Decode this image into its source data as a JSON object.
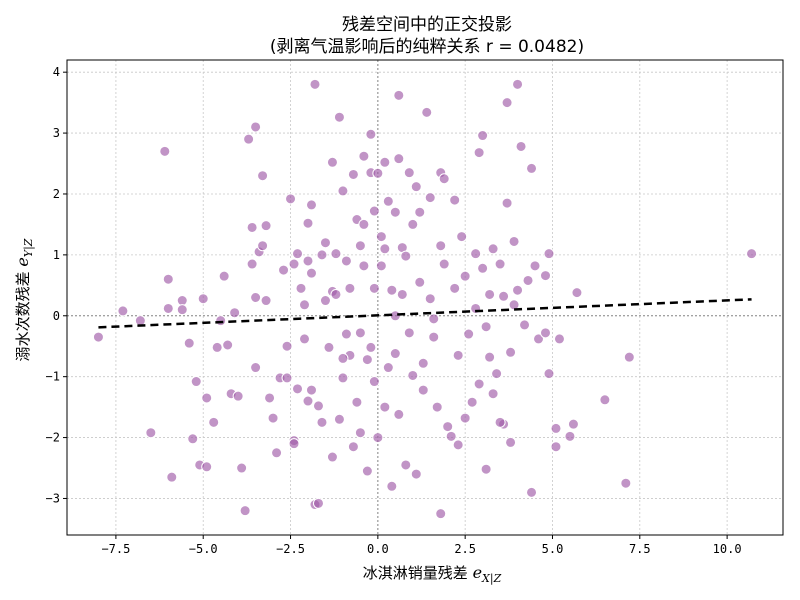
{
  "chart_data": {
    "type": "scatter",
    "title": "残差空间中的正交投影",
    "subtitle": "(剥离气温影响后的纯粹关系 r = 0.0482)",
    "xlabel_main": "冰淇淋销量残差 ",
    "xlabel_symbol": "e",
    "xlabel_sub": "X|Z",
    "ylabel_main": "溺水次数残差 ",
    "ylabel_symbol": "e",
    "ylabel_sub": "Y|Z",
    "xlim": [
      -8.9,
      11.6
    ],
    "ylim": [
      -3.6,
      4.2
    ],
    "xticks": [
      -7.5,
      -5.0,
      -2.5,
      0.0,
      2.5,
      5.0,
      7.5,
      10.0
    ],
    "yticks": [
      -3,
      -2,
      -1,
      0,
      1,
      2,
      3,
      4
    ],
    "xtick_labels": [
      "−7.5",
      "−5.0",
      "−2.5",
      "0.0",
      "2.5",
      "5.0",
      "7.5",
      "10.0"
    ],
    "ytick_labels": [
      "−3",
      "−2",
      "−1",
      "0",
      "1",
      "2",
      "3",
      "4"
    ],
    "grid": true,
    "zero_lines": true,
    "point_color": "#a05aa8",
    "line_color": "#000000",
    "fit_line": {
      "x": [
        -8.0,
        10.7
      ],
      "y": [
        -0.19,
        0.27
      ]
    },
    "points": [
      [
        -8.0,
        -0.35
      ],
      [
        -7.3,
        0.08
      ],
      [
        -6.8,
        -0.08
      ],
      [
        -6.5,
        -1.92
      ],
      [
        -6.1,
        2.7
      ],
      [
        -6.0,
        0.6
      ],
      [
        -6.0,
        0.12
      ],
      [
        -5.9,
        -2.65
      ],
      [
        -5.6,
        0.25
      ],
      [
        -5.6,
        0.1
      ],
      [
        -5.4,
        -0.45
      ],
      [
        -5.3,
        -2.02
      ],
      [
        -5.2,
        -1.08
      ],
      [
        -5.1,
        -2.45
      ],
      [
        -5.0,
        0.28
      ],
      [
        -4.9,
        -2.48
      ],
      [
        -4.9,
        -1.35
      ],
      [
        -4.7,
        -1.75
      ],
      [
        -4.6,
        -0.52
      ],
      [
        -4.5,
        -0.08
      ],
      [
        -4.4,
        0.65
      ],
      [
        -4.3,
        -0.48
      ],
      [
        -4.2,
        -1.28
      ],
      [
        -4.1,
        0.05
      ],
      [
        -4.0,
        -1.32
      ],
      [
        -3.9,
        -2.5
      ],
      [
        -3.8,
        -3.2
      ],
      [
        -3.7,
        2.9
      ],
      [
        -3.6,
        1.45
      ],
      [
        -3.6,
        0.85
      ],
      [
        -3.5,
        3.1
      ],
      [
        -3.5,
        -0.85
      ],
      [
        -3.4,
        1.05
      ],
      [
        -3.3,
        1.15
      ],
      [
        -3.3,
        2.3
      ],
      [
        -3.2,
        1.48
      ],
      [
        -3.2,
        0.25
      ],
      [
        -3.1,
        -1.35
      ],
      [
        -3.0,
        -1.68
      ],
      [
        -2.9,
        -2.25
      ],
      [
        -2.8,
        -1.02
      ],
      [
        -2.7,
        0.75
      ],
      [
        -2.6,
        -1.02
      ],
      [
        -2.6,
        -0.5
      ],
      [
        -2.5,
        1.92
      ],
      [
        -2.4,
        -2.05
      ],
      [
        -2.4,
        -2.1
      ],
      [
        -2.4,
        0.85
      ],
      [
        -2.3,
        1.02
      ],
      [
        -2.3,
        -1.2
      ],
      [
        -2.2,
        0.45
      ],
      [
        -2.1,
        0.18
      ],
      [
        -2.1,
        -0.38
      ],
      [
        -2.0,
        1.52
      ],
      [
        -2.0,
        -1.4
      ],
      [
        -1.9,
        1.82
      ],
      [
        -1.9,
        -1.22
      ],
      [
        -1.9,
        0.7
      ],
      [
        -1.8,
        3.8
      ],
      [
        -1.8,
        -3.1
      ],
      [
        -1.7,
        -3.08
      ],
      [
        -1.7,
        -1.48
      ],
      [
        -1.6,
        1.0
      ],
      [
        -1.6,
        -1.75
      ],
      [
        -1.5,
        0.25
      ],
      [
        -1.5,
        1.2
      ],
      [
        -1.4,
        -0.52
      ],
      [
        -1.3,
        2.52
      ],
      [
        -1.3,
        -2.32
      ],
      [
        -1.3,
        0.4
      ],
      [
        -1.2,
        1.02
      ],
      [
        -1.2,
        0.35
      ],
      [
        -1.1,
        3.26
      ],
      [
        -1.1,
        -1.7
      ],
      [
        -1.0,
        2.05
      ],
      [
        -1.0,
        -1.02
      ],
      [
        -0.9,
        0.9
      ],
      [
        -0.9,
        -0.3
      ],
      [
        -0.8,
        0.45
      ],
      [
        -0.8,
        -0.65
      ],
      [
        -0.7,
        2.32
      ],
      [
        -0.7,
        -2.15
      ],
      [
        -0.6,
        1.58
      ],
      [
        -0.6,
        -1.42
      ],
      [
        -0.5,
        1.15
      ],
      [
        -0.5,
        -0.28
      ],
      [
        -0.5,
        -1.92
      ],
      [
        -0.4,
        2.62
      ],
      [
        -0.4,
        1.5
      ],
      [
        -0.4,
        0.82
      ],
      [
        -0.3,
        -0.72
      ],
      [
        -0.3,
        -2.55
      ],
      [
        -0.2,
        2.98
      ],
      [
        -0.2,
        2.35
      ],
      [
        -0.2,
        -0.52
      ],
      [
        -0.1,
        1.72
      ],
      [
        -0.1,
        0.45
      ],
      [
        -0.1,
        -1.08
      ],
      [
        0.0,
        2.34
      ],
      [
        0.0,
        -2.0
      ],
      [
        0.1,
        1.3
      ],
      [
        0.1,
        0.82
      ],
      [
        0.2,
        2.52
      ],
      [
        0.2,
        1.1
      ],
      [
        0.2,
        -1.5
      ],
      [
        0.3,
        -0.85
      ],
      [
        0.3,
        1.88
      ],
      [
        0.4,
        -2.8
      ],
      [
        0.4,
        0.42
      ],
      [
        0.5,
        1.7
      ],
      [
        0.5,
        -0.62
      ],
      [
        0.6,
        3.62
      ],
      [
        0.6,
        2.58
      ],
      [
        0.6,
        -1.62
      ],
      [
        0.7,
        1.12
      ],
      [
        0.7,
        0.35
      ],
      [
        0.8,
        -2.45
      ],
      [
        0.8,
        0.98
      ],
      [
        0.9,
        2.35
      ],
      [
        0.9,
        -0.28
      ],
      [
        1.0,
        1.5
      ],
      [
        1.0,
        -0.98
      ],
      [
        1.1,
        2.12
      ],
      [
        1.1,
        -2.6
      ],
      [
        1.2,
        1.7
      ],
      [
        1.2,
        0.55
      ],
      [
        1.3,
        -0.78
      ],
      [
        1.3,
        -1.22
      ],
      [
        1.4,
        3.34
      ],
      [
        1.5,
        1.94
      ],
      [
        1.5,
        0.28
      ],
      [
        1.6,
        -0.35
      ],
      [
        1.7,
        -1.5
      ],
      [
        1.8,
        2.35
      ],
      [
        1.8,
        1.15
      ],
      [
        1.8,
        -3.25
      ],
      [
        1.9,
        2.25
      ],
      [
        1.9,
        0.85
      ],
      [
        2.0,
        -1.82
      ],
      [
        2.1,
        -1.98
      ],
      [
        2.2,
        0.45
      ],
      [
        2.3,
        -0.65
      ],
      [
        2.3,
        -2.12
      ],
      [
        2.4,
        1.3
      ],
      [
        2.5,
        0.65
      ],
      [
        2.5,
        -1.68
      ],
      [
        2.6,
        -0.3
      ],
      [
        2.7,
        -1.42
      ],
      [
        2.8,
        0.12
      ],
      [
        2.8,
        1.02
      ],
      [
        2.9,
        2.68
      ],
      [
        2.9,
        -1.12
      ],
      [
        3.0,
        2.96
      ],
      [
        3.0,
        0.78
      ],
      [
        3.1,
        -2.52
      ],
      [
        3.1,
        -0.18
      ],
      [
        3.2,
        0.35
      ],
      [
        3.2,
        -0.68
      ],
      [
        3.3,
        1.1
      ],
      [
        3.3,
        -1.28
      ],
      [
        3.4,
        -0.95
      ],
      [
        3.5,
        0.85
      ],
      [
        3.6,
        0.32
      ],
      [
        3.6,
        -1.78
      ],
      [
        3.7,
        3.5
      ],
      [
        3.7,
        1.85
      ],
      [
        3.8,
        -2.08
      ],
      [
        3.8,
        -0.6
      ],
      [
        3.9,
        1.22
      ],
      [
        3.9,
        0.18
      ],
      [
        4.0,
        3.8
      ],
      [
        4.0,
        0.42
      ],
      [
        4.1,
        2.78
      ],
      [
        4.2,
        -0.15
      ],
      [
        4.3,
        0.58
      ],
      [
        4.4,
        -2.9
      ],
      [
        4.4,
        2.42
      ],
      [
        4.5,
        0.82
      ],
      [
        4.6,
        -0.38
      ],
      [
        4.8,
        -0.28
      ],
      [
        4.8,
        0.66
      ],
      [
        4.9,
        1.02
      ],
      [
        4.9,
        -0.95
      ],
      [
        5.1,
        -1.85
      ],
      [
        5.1,
        -2.15
      ],
      [
        5.2,
        -0.38
      ],
      [
        5.5,
        -1.98
      ],
      [
        5.6,
        -1.78
      ],
      [
        5.7,
        0.38
      ],
      [
        6.5,
        -1.38
      ],
      [
        7.1,
        -2.75
      ],
      [
        7.2,
        -0.68
      ],
      [
        10.7,
        1.02
      ],
      [
        -3.5,
        0.3
      ],
      [
        -1.0,
        -0.7
      ],
      [
        0.5,
        0.0
      ],
      [
        1.6,
        -0.05
      ],
      [
        2.2,
        1.9
      ],
      [
        -2.0,
        0.9
      ],
      [
        3.5,
        -1.75
      ]
    ]
  }
}
